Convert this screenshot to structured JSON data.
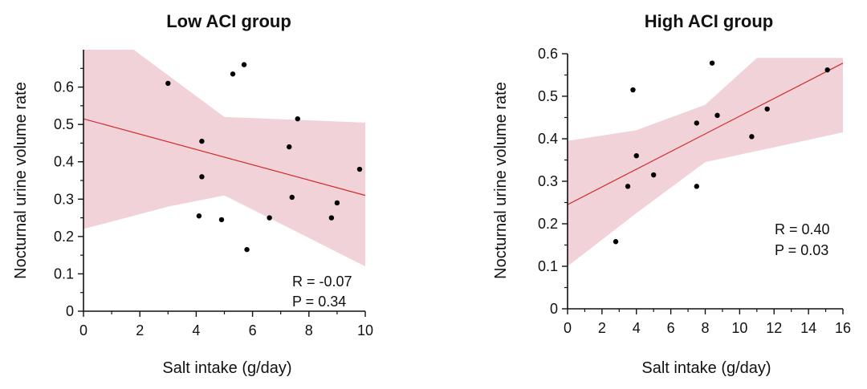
{
  "colors": {
    "band": "#f1d2d8",
    "line": "#d02c2c",
    "point": "#000000",
    "axis": "#111111"
  },
  "chart_data": [
    {
      "type": "scatter",
      "title": "Low ACI group",
      "xlabel": "Salt intake (g/day)",
      "ylabel": "Nocturnal urine volume rate",
      "xlim": [
        0,
        10
      ],
      "ylim": [
        0,
        0.7
      ],
      "xticks": [
        "0",
        "2",
        "4",
        "6",
        "8",
        "10"
      ],
      "yticks": [
        "0",
        "0.1",
        "0.2",
        "0.3",
        "0.4",
        "0.5",
        "0.6"
      ],
      "ytick_values": [
        0,
        0.1,
        0.2,
        0.3,
        0.4,
        0.5,
        0.6
      ],
      "xtick_values": [
        0,
        2,
        4,
        6,
        8,
        10
      ],
      "y_minor_ticks": [
        0.05,
        0.15,
        0.25,
        0.35,
        0.45,
        0.55,
        0.65
      ],
      "x_minor_ticks": [
        1,
        3,
        5,
        7,
        9
      ],
      "points": [
        {
          "x": 3.0,
          "y": 0.61
        },
        {
          "x": 5.3,
          "y": 0.635
        },
        {
          "x": 5.7,
          "y": 0.66
        },
        {
          "x": 7.6,
          "y": 0.515
        },
        {
          "x": 4.2,
          "y": 0.455
        },
        {
          "x": 7.3,
          "y": 0.44
        },
        {
          "x": 9.8,
          "y": 0.38
        },
        {
          "x": 4.2,
          "y": 0.36
        },
        {
          "x": 7.4,
          "y": 0.305
        },
        {
          "x": 9.0,
          "y": 0.29
        },
        {
          "x": 4.1,
          "y": 0.255
        },
        {
          "x": 4.9,
          "y": 0.245
        },
        {
          "x": 6.6,
          "y": 0.25
        },
        {
          "x": 8.8,
          "y": 0.25
        },
        {
          "x": 5.8,
          "y": 0.165
        }
      ],
      "regression": [
        {
          "x": 0,
          "y": 0.515
        },
        {
          "x": 10,
          "y": 0.31
        }
      ],
      "confidence_band": {
        "upper": [
          {
            "x": 0,
            "y": 0.71
          },
          {
            "x": 1.6,
            "y": 0.71
          },
          {
            "x": 5.0,
            "y": 0.52
          },
          {
            "x": 10,
            "y": 0.505
          }
        ],
        "lower": [
          {
            "x": 0,
            "y": 0.22
          },
          {
            "x": 3.0,
            "y": 0.28
          },
          {
            "x": 5.0,
            "y": 0.31
          },
          {
            "x": 10,
            "y": 0.12
          }
        ]
      },
      "stats": [
        "R = -0.07",
        "P = 0.34"
      ]
    },
    {
      "type": "scatter",
      "title": "High ACI group",
      "xlabel": "Salt intake (g/day)",
      "ylabel": "Nocturnal urine volume rate",
      "xlim": [
        0,
        16
      ],
      "ylim": [
        0,
        0.6
      ],
      "xticks": [
        "0",
        "2",
        "4",
        "6",
        "8",
        "10",
        "12",
        "14",
        "16"
      ],
      "yticks": [
        "0",
        "0.1",
        "0.2",
        "0.3",
        "0.4",
        "0.5",
        "0.6"
      ],
      "ytick_values": [
        0,
        0.1,
        0.2,
        0.3,
        0.4,
        0.5,
        0.6
      ],
      "xtick_values": [
        0,
        2,
        4,
        6,
        8,
        10,
        12,
        14,
        16
      ],
      "y_minor_ticks": [
        0.05,
        0.15,
        0.25,
        0.35,
        0.45,
        0.55
      ],
      "x_minor_ticks": [
        1,
        3,
        5,
        7,
        9,
        11,
        13,
        15
      ],
      "points": [
        {
          "x": 8.4,
          "y": 0.578
        },
        {
          "x": 15.1,
          "y": 0.562
        },
        {
          "x": 3.8,
          "y": 0.515
        },
        {
          "x": 11.6,
          "y": 0.47
        },
        {
          "x": 8.7,
          "y": 0.455
        },
        {
          "x": 7.5,
          "y": 0.437
        },
        {
          "x": 10.7,
          "y": 0.405
        },
        {
          "x": 4.0,
          "y": 0.36
        },
        {
          "x": 5.0,
          "y": 0.315
        },
        {
          "x": 3.5,
          "y": 0.288
        },
        {
          "x": 7.5,
          "y": 0.288
        },
        {
          "x": 2.8,
          "y": 0.158
        }
      ],
      "regression": [
        {
          "x": 0,
          "y": 0.245
        },
        {
          "x": 16,
          "y": 0.578
        }
      ],
      "confidence_band": {
        "upper": [
          {
            "x": 0,
            "y": 0.395
          },
          {
            "x": 4.0,
            "y": 0.42
          },
          {
            "x": 8.0,
            "y": 0.48
          },
          {
            "x": 11.0,
            "y": 0.59
          },
          {
            "x": 16,
            "y": 0.59
          }
        ],
        "lower": [
          {
            "x": 0,
            "y": 0.1
          },
          {
            "x": 4.0,
            "y": 0.225
          },
          {
            "x": 8.0,
            "y": 0.345
          },
          {
            "x": 16,
            "y": 0.415
          }
        ]
      },
      "stats": [
        "R = 0.40",
        "P = 0.03"
      ]
    }
  ]
}
